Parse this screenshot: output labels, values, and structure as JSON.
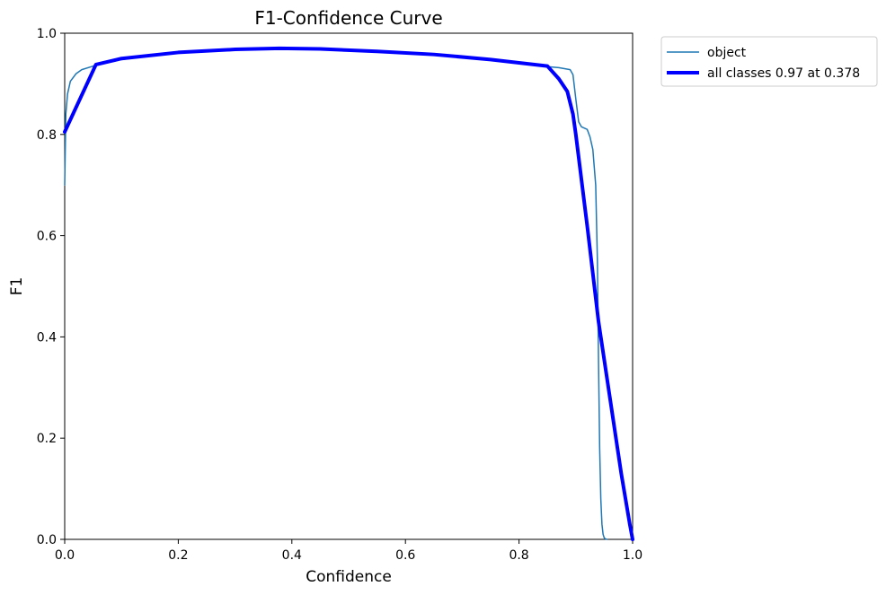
{
  "chart_data": {
    "type": "line",
    "title": "F1-Confidence Curve",
    "xlabel": "Confidence",
    "ylabel": "F1",
    "xlim": [
      0.0,
      1.0
    ],
    "ylim": [
      0.0,
      1.0
    ],
    "xticks": [
      "0.0",
      "0.2",
      "0.4",
      "0.6",
      "0.8",
      "1.0"
    ],
    "yticks": [
      "0.0",
      "0.2",
      "0.4",
      "0.6",
      "0.8",
      "1.0"
    ],
    "grid": false,
    "legend_position": "outside-top-right",
    "series": [
      {
        "name": "object",
        "color": "#1f77b4",
        "style": "thin",
        "x": [
          0.0,
          0.002,
          0.005,
          0.01,
          0.02,
          0.03,
          0.05,
          0.08,
          0.1,
          0.15,
          0.2,
          0.25,
          0.3,
          0.35,
          0.378,
          0.4,
          0.45,
          0.5,
          0.55,
          0.6,
          0.65,
          0.7,
          0.75,
          0.8,
          0.85,
          0.87,
          0.88,
          0.89,
          0.895,
          0.9,
          0.905,
          0.91,
          0.92,
          0.925,
          0.93,
          0.935,
          0.938,
          0.94,
          0.942,
          0.944,
          0.946,
          0.948,
          0.95,
          0.952,
          0.955
        ],
        "y": [
          0.7,
          0.84,
          0.88,
          0.905,
          0.92,
          0.928,
          0.935,
          0.943,
          0.948,
          0.955,
          0.961,
          0.965,
          0.968,
          0.969,
          0.97,
          0.97,
          0.969,
          0.967,
          0.964,
          0.961,
          0.958,
          0.953,
          0.947,
          0.94,
          0.934,
          0.932,
          0.93,
          0.928,
          0.918,
          0.87,
          0.825,
          0.815,
          0.81,
          0.795,
          0.77,
          0.7,
          0.55,
          0.35,
          0.18,
          0.08,
          0.03,
          0.01,
          0.003,
          0.001,
          0.0
        ]
      },
      {
        "name": "all classes 0.97 at 0.378",
        "color": "#0000ff",
        "style": "thick",
        "x": [
          0.0,
          0.055,
          0.1,
          0.2,
          0.3,
          0.378,
          0.45,
          0.55,
          0.65,
          0.75,
          0.85,
          0.87,
          0.885,
          0.895,
          0.9,
          0.92,
          0.94,
          0.96,
          0.98,
          0.995,
          1.0
        ],
        "y": [
          0.805,
          0.938,
          0.95,
          0.962,
          0.968,
          0.97,
          0.969,
          0.964,
          0.958,
          0.948,
          0.935,
          0.91,
          0.885,
          0.84,
          0.8,
          0.62,
          0.43,
          0.28,
          0.13,
          0.03,
          0.0
        ]
      }
    ]
  }
}
